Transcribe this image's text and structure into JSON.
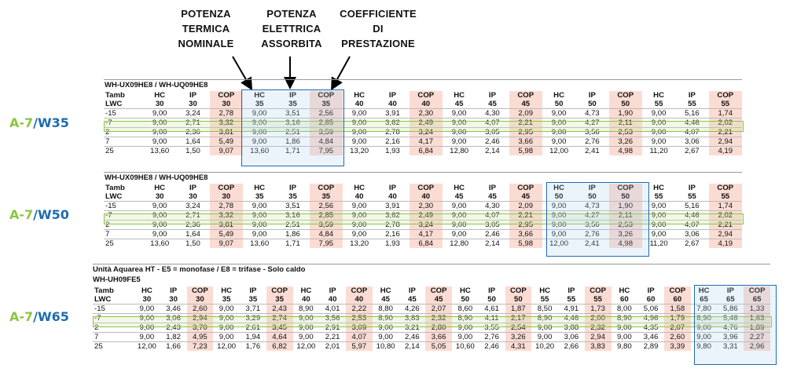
{
  "headers": {
    "potenza_termica": [
      "POTENZA",
      "TERMICA",
      "NOMINALE"
    ],
    "potenza_elettrica": [
      "POTENZA",
      "ELETTRICA",
      "ASSORBITA"
    ],
    "coefficiente": [
      "COEFFICIENTE",
      "DI",
      "PRESTAZIONE"
    ]
  },
  "side_labels": [
    {
      "a": "A-7",
      "s": "/",
      "w": "W35"
    },
    {
      "a": "A-7",
      "s": "/",
      "w": "W50"
    },
    {
      "a": "A-7",
      "s": "/",
      "w": "W65"
    }
  ],
  "colors": {
    "blue": "#1f6bb0",
    "green": "#8cc63f",
    "cop_bg": "#fbdcd3"
  },
  "table1": {
    "title": "WH-UX09HE8 / WH-UQ09HE8",
    "cols": [
      "HC",
      "IP",
      "COP",
      "HC",
      "IP",
      "COP",
      "HC",
      "IP",
      "COP",
      "HC",
      "IP",
      "COP",
      "HC",
      "IP",
      "COP",
      "HC",
      "IP",
      "COP"
    ],
    "lwc": [
      "30",
      "30",
      "30",
      "35",
      "35",
      "35",
      "40",
      "40",
      "40",
      "45",
      "45",
      "45",
      "50",
      "50",
      "50",
      "55",
      "55",
      "55"
    ],
    "rows": [
      {
        "t": "-15",
        "v": [
          "9,00",
          "3,24",
          "2,78",
          "9,00",
          "3,51",
          "2,56",
          "9,00",
          "3,91",
          "2,30",
          "9,00",
          "4,30",
          "2,09",
          "9,00",
          "4,73",
          "1,90",
          "9,00",
          "5,16",
          "1,74"
        ]
      },
      {
        "t": "-7",
        "v": [
          "9,00",
          "2,71",
          "3,32",
          "9,00",
          "3,16",
          "2,85",
          "9,00",
          "3,62",
          "2,49",
          "9,00",
          "4,07",
          "2,21",
          "9,00",
          "4,27",
          "2,11",
          "9,00",
          "4,46",
          "2,02"
        ]
      },
      {
        "t": "2",
        "v": [
          "9,00",
          "2,36",
          "3,81",
          "9,00",
          "2,51",
          "3,59",
          "9,00",
          "2,78",
          "3,24",
          "9,00",
          "3,05",
          "2,95",
          "9,00",
          "3,56",
          "2,53",
          "9,00",
          "4,07",
          "2,21"
        ]
      },
      {
        "t": "7",
        "v": [
          "9,00",
          "1,64",
          "5,49",
          "9,00",
          "1,86",
          "4,84",
          "9,00",
          "2,16",
          "4,17",
          "9,00",
          "2,46",
          "3,66",
          "9,00",
          "2,76",
          "3,26",
          "9,00",
          "3,06",
          "2,94"
        ]
      },
      {
        "t": "25",
        "v": [
          "13,60",
          "1,50",
          "9,07",
          "13,60",
          "1,71",
          "7,95",
          "13,20",
          "1,93",
          "6,84",
          "12,80",
          "2,14",
          "5,98",
          "12,00",
          "2,41",
          "4,98",
          "11,20",
          "2,67",
          "4,19"
        ]
      }
    ]
  },
  "table2": {
    "title": "WH-UX09HE8 / WH-UQ09HE8",
    "cols": [
      "HC",
      "IP",
      "COP",
      "HC",
      "IP",
      "COP",
      "HC",
      "IP",
      "COP",
      "HC",
      "IP",
      "COP",
      "HC",
      "IP",
      "COP",
      "HC",
      "IP",
      "COP"
    ],
    "lwc": [
      "30",
      "30",
      "30",
      "35",
      "35",
      "35",
      "40",
      "40",
      "40",
      "45",
      "45",
      "45",
      "50",
      "50",
      "50",
      "55",
      "55",
      "55"
    ],
    "rows": [
      {
        "t": "-15",
        "v": [
          "9,00",
          "3,24",
          "2,78",
          "9,00",
          "3,51",
          "2,56",
          "9,00",
          "3,91",
          "2,30",
          "9,00",
          "4,30",
          "2,09",
          "9,00",
          "4,73",
          "1,90",
          "9,00",
          "5,16",
          "1,74"
        ]
      },
      {
        "t": "-7",
        "v": [
          "9,00",
          "2,71",
          "3,32",
          "9,00",
          "3,16",
          "2,85",
          "9,00",
          "3,62",
          "2,49",
          "9,00",
          "4,07",
          "2,21",
          "9,00",
          "4,27",
          "2,11",
          "9,00",
          "4,46",
          "2,02"
        ]
      },
      {
        "t": "2",
        "v": [
          "9,00",
          "2,36",
          "3,81",
          "9,00",
          "2,51",
          "3,59",
          "9,00",
          "2,78",
          "3,24",
          "9,00",
          "3,05",
          "2,95",
          "9,00",
          "3,56",
          "2,53",
          "9,00",
          "4,07",
          "2,21"
        ]
      },
      {
        "t": "7",
        "v": [
          "9,00",
          "1,64",
          "5,49",
          "9,00",
          "1,86",
          "4,84",
          "9,00",
          "2,16",
          "4,17",
          "9,00",
          "2,46",
          "3,66",
          "9,00",
          "2,76",
          "3,26",
          "9,00",
          "3,06",
          "2,94"
        ]
      },
      {
        "t": "25",
        "v": [
          "13,60",
          "1,50",
          "9,07",
          "13,60",
          "1,71",
          "7,95",
          "13,20",
          "1,93",
          "6,84",
          "12,80",
          "2,14",
          "5,98",
          "12,00",
          "2,41",
          "4,98",
          "11,20",
          "2,67",
          "4,19"
        ]
      }
    ]
  },
  "table3": {
    "subtitle": "Unità Aquarea HT - E5 = monofase / E8 = trifase - Solo caldo",
    "title": "WH-UH09FE5",
    "cols": [
      "HC",
      "IP",
      "COP",
      "HC",
      "IP",
      "COP",
      "HC",
      "IP",
      "COP",
      "HC",
      "IP",
      "COP",
      "HC",
      "IP",
      "COP",
      "HC",
      "IP",
      "COP",
      "HC",
      "IP",
      "COP",
      "HC",
      "IP",
      "COP"
    ],
    "lwc": [
      "30",
      "30",
      "30",
      "35",
      "35",
      "35",
      "40",
      "40",
      "40",
      "45",
      "45",
      "45",
      "50",
      "50",
      "50",
      "55",
      "55",
      "55",
      "60",
      "60",
      "60",
      "65",
      "65",
      "65"
    ],
    "rows": [
      {
        "t": "-15",
        "v": [
          "9,00",
          "3,46",
          "2,60",
          "9,00",
          "3,71",
          "2,43",
          "8,90",
          "4,01",
          "2,22",
          "8,80",
          "4,26",
          "2,07",
          "8,60",
          "4,61",
          "1,87",
          "8,50",
          "4,91",
          "1,73",
          "8,00",
          "5,06",
          "1,58",
          "7,80",
          "5,86",
          "1,33"
        ]
      },
      {
        "t": "-7",
        "v": [
          "9,00",
          "3,06",
          "2,94",
          "9,00",
          "3,29",
          "2,74",
          "9,00",
          "3,56",
          "2,53",
          "8,90",
          "3,83",
          "2,32",
          "8,90",
          "4,11",
          "2,17",
          "8,90",
          "4,46",
          "2,00",
          "8,90",
          "4,96",
          "1,79",
          "8,90",
          "5,46",
          "1,63"
        ]
      },
      {
        "t": "2",
        "v": [
          "9,00",
          "2,43",
          "3,70",
          "9,00",
          "2,61",
          "3,45",
          "9,00",
          "2,91",
          "3,09",
          "9,00",
          "3,21",
          "2,80",
          "9,00",
          "3,55",
          "2,54",
          "9,00",
          "3,88",
          "2,32",
          "9,00",
          "4,35",
          "2,07",
          "9,00",
          "4,76",
          "1,89"
        ]
      },
      {
        "t": "7",
        "v": [
          "9,00",
          "1,82",
          "4,95",
          "9,00",
          "1,94",
          "4,64",
          "9,00",
          "2,21",
          "4,07",
          "9,00",
          "2,46",
          "3,66",
          "9,00",
          "2,76",
          "3,26",
          "9,00",
          "3,06",
          "2,94",
          "9,00",
          "3,46",
          "2,60",
          "9,00",
          "3,96",
          "2,27"
        ]
      },
      {
        "t": "25",
        "v": [
          "12,00",
          "1,66",
          "7,23",
          "12,00",
          "1,76",
          "6,82",
          "12,00",
          "2,01",
          "5,97",
          "10,80",
          "2,14",
          "5,05",
          "10,60",
          "2,46",
          "4,31",
          "10,20",
          "2,66",
          "3,83",
          "9,80",
          "2,89",
          "3,39",
          "9,80",
          "3,31",
          "2,96"
        ]
      }
    ]
  },
  "labels": {
    "tamb": "Tamb",
    "lwc": "LWC"
  }
}
